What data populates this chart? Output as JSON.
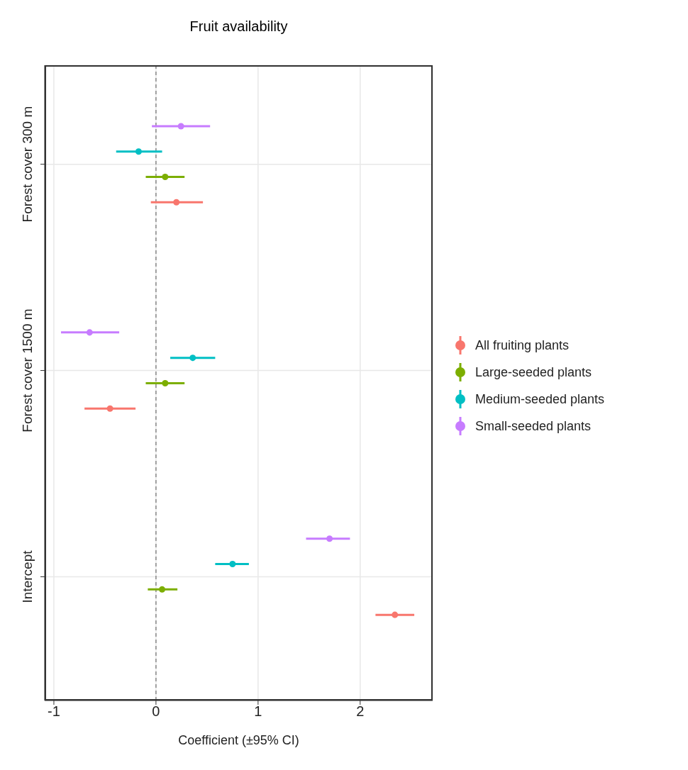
{
  "chart_data": {
    "type": "scatter",
    "orientation": "horizontal",
    "title": "Fruit availability",
    "xlabel": "Coefficient (±95% CI)",
    "categories": [
      "Forest cover 300 m",
      "Forest cover 1500 m",
      "Intercept"
    ],
    "series": [
      {
        "name": "All fruiting plants",
        "color": "#f8766d",
        "values": [
          0.2,
          -0.45,
          2.34
        ],
        "errors": [
          [
            -0.05,
            0.46
          ],
          [
            -0.7,
            -0.2
          ],
          [
            2.15,
            2.53
          ]
        ]
      },
      {
        "name": "Large-seeded plants",
        "color": "#7cae00",
        "values": [
          0.09,
          0.09,
          0.06
        ],
        "errors": [
          [
            -0.1,
            0.28
          ],
          [
            -0.1,
            0.28
          ],
          [
            -0.08,
            0.21
          ]
        ]
      },
      {
        "name": "Medium-seeded plants",
        "color": "#00bfc4",
        "values": [
          -0.17,
          0.36,
          0.75
        ],
        "errors": [
          [
            -0.39,
            0.06
          ],
          [
            0.14,
            0.58
          ],
          [
            0.58,
            0.91
          ]
        ]
      },
      {
        "name": "Small-seeded plants",
        "color": "#c77cff",
        "values": [
          0.245,
          -0.65,
          1.7
        ],
        "errors": [
          [
            -0.04,
            0.53
          ],
          [
            -0.93,
            -0.36
          ],
          [
            1.47,
            1.9
          ]
        ]
      }
    ],
    "xlim": [
      -1.09,
      2.71
    ],
    "xticks": [
      -1,
      0,
      1,
      2
    ],
    "grid": true,
    "legend": "right",
    "marker": "circle",
    "ref_lines": [
      {
        "axis": "x",
        "value": 0,
        "color": "#888888",
        "line_style": "dashed"
      }
    ]
  }
}
